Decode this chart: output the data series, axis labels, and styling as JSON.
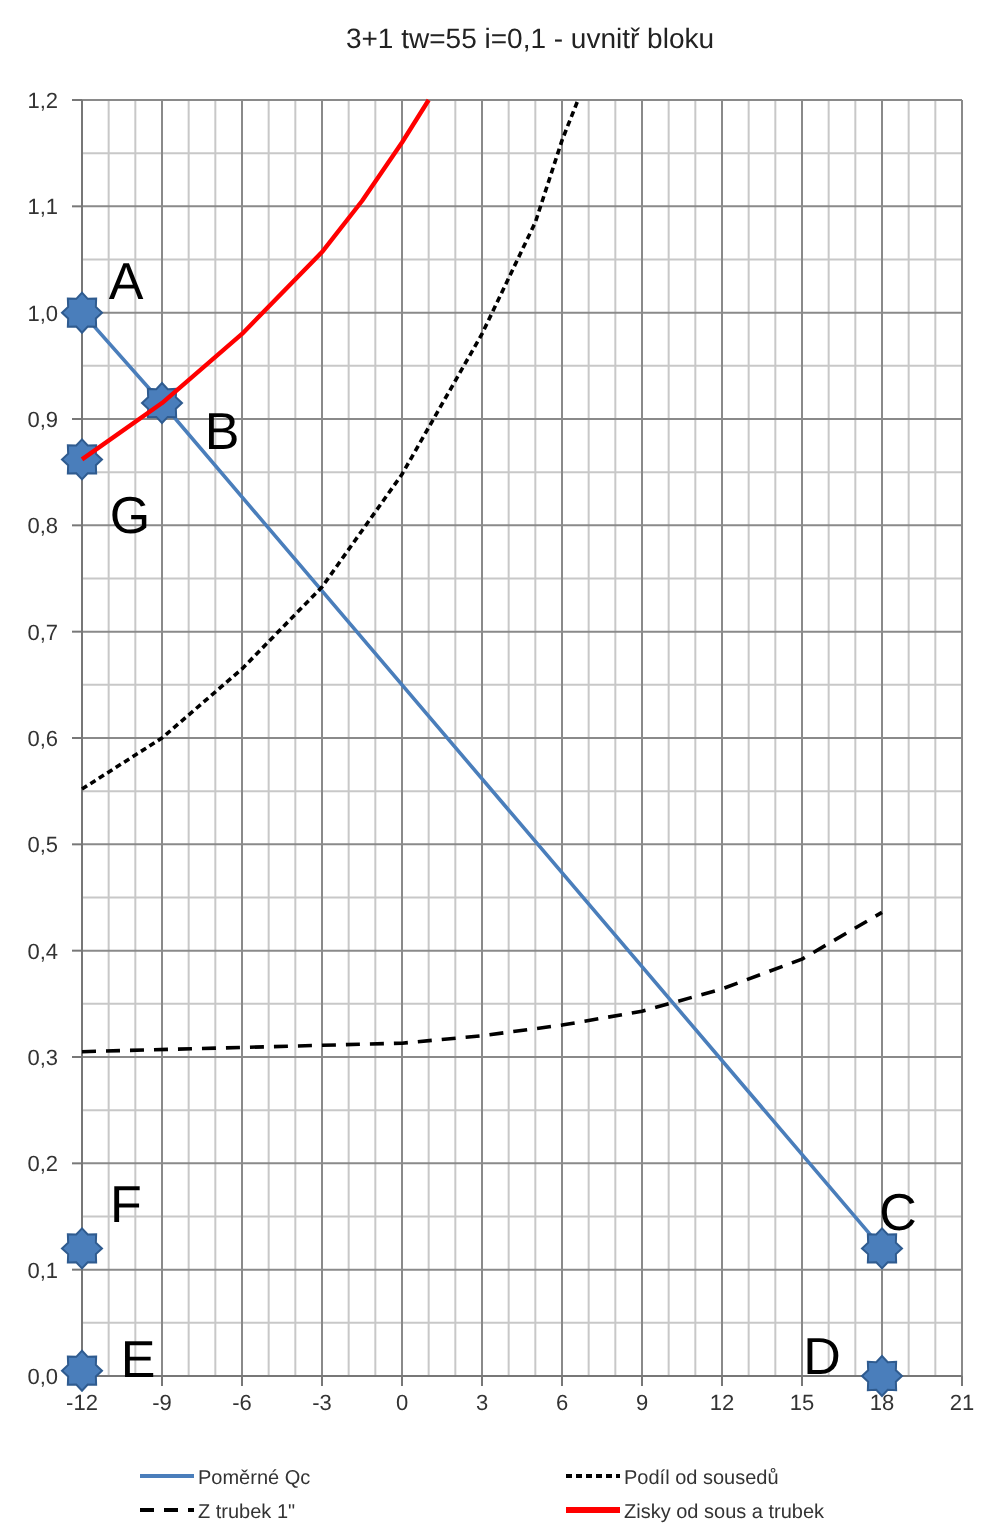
{
  "chart_data": {
    "type": "line",
    "title": "3+1 tw=55 i=0,1 - uvnitř bloku",
    "xlim": [
      -12,
      21
    ],
    "xticks": [
      -12,
      -9,
      -6,
      -3,
      0,
      3,
      6,
      9,
      12,
      15,
      18,
      21
    ],
    "ylim": [
      0,
      1.2
    ],
    "yticks": [
      {
        "value": 0,
        "label": "0,0"
      },
      {
        "value": 0.1,
        "label": "0,1"
      },
      {
        "value": 0.2,
        "label": "0,2"
      },
      {
        "value": 0.3,
        "label": "0,3"
      },
      {
        "value": 0.4,
        "label": "0,4"
      },
      {
        "value": 0.5,
        "label": "0,5"
      },
      {
        "value": 0.6,
        "label": "0,6"
      },
      {
        "value": 0.7,
        "label": "0,7"
      },
      {
        "value": 0.8,
        "label": "0,8"
      },
      {
        "value": 0.9,
        "label": "0,9"
      },
      {
        "value": 1.0,
        "label": "1,0"
      },
      {
        "value": 1.1,
        "label": "1,1"
      },
      {
        "value": 1.2,
        "label": "1,2"
      }
    ],
    "grid": true,
    "legend": "bottom",
    "series": [
      {
        "name": "Poměrné Qc",
        "color": "#4a7ebb",
        "line_style": "solid",
        "marker": "star",
        "x": [
          -12,
          -9,
          18
        ],
        "values": [
          1.0,
          0.915,
          0.12
        ]
      },
      {
        "name": "Podíl od sousedů",
        "color": "#000000",
        "line_style": "dotted",
        "marker": "none",
        "x": [
          -12,
          -9,
          -6,
          -3,
          0,
          3,
          5,
          6,
          6.6
        ],
        "values": [
          0.552,
          0.6,
          0.665,
          0.742,
          0.848,
          0.98,
          1.085,
          1.162,
          1.2
        ]
      },
      {
        "name": "Z trubek 1\"",
        "color": "#000000",
        "line_style": "dashed",
        "marker": "none",
        "x": [
          -12,
          -3,
          0,
          3,
          6,
          9,
          12,
          15,
          18
        ],
        "values": [
          0.305,
          0.311,
          0.313,
          0.32,
          0.33,
          0.343,
          0.364,
          0.392,
          0.436
        ]
      },
      {
        "name": "Zisky od sous a trubek",
        "color": "#ff0000",
        "line_style": "solid",
        "marker": "none",
        "x": [
          -12,
          -9,
          -6,
          -3,
          -1.5,
          0,
          1
        ],
        "values": [
          0.862,
          0.915,
          0.98,
          1.057,
          1.105,
          1.16,
          1.2
        ]
      },
      {
        "type": "scatter",
        "color": "#4a7ebb",
        "marker": "star",
        "x": [
          -12,
          -12,
          -12,
          18
        ],
        "values": [
          0.862,
          0.12,
          0.005,
          0
        ]
      }
    ],
    "annotations": [
      {
        "text": "A",
        "x": -12,
        "y": 1.0
      },
      {
        "text": "B",
        "x": -9,
        "y": 0.915
      },
      {
        "text": "C",
        "x": 18,
        "y": 0.12
      },
      {
        "text": "D",
        "x": 18,
        "y": 0
      },
      {
        "text": "E",
        "x": -12,
        "y": 0.005
      },
      {
        "text": "F",
        "x": -12,
        "y": 0.12
      },
      {
        "text": "G",
        "x": -12,
        "y": 0.862
      }
    ]
  }
}
